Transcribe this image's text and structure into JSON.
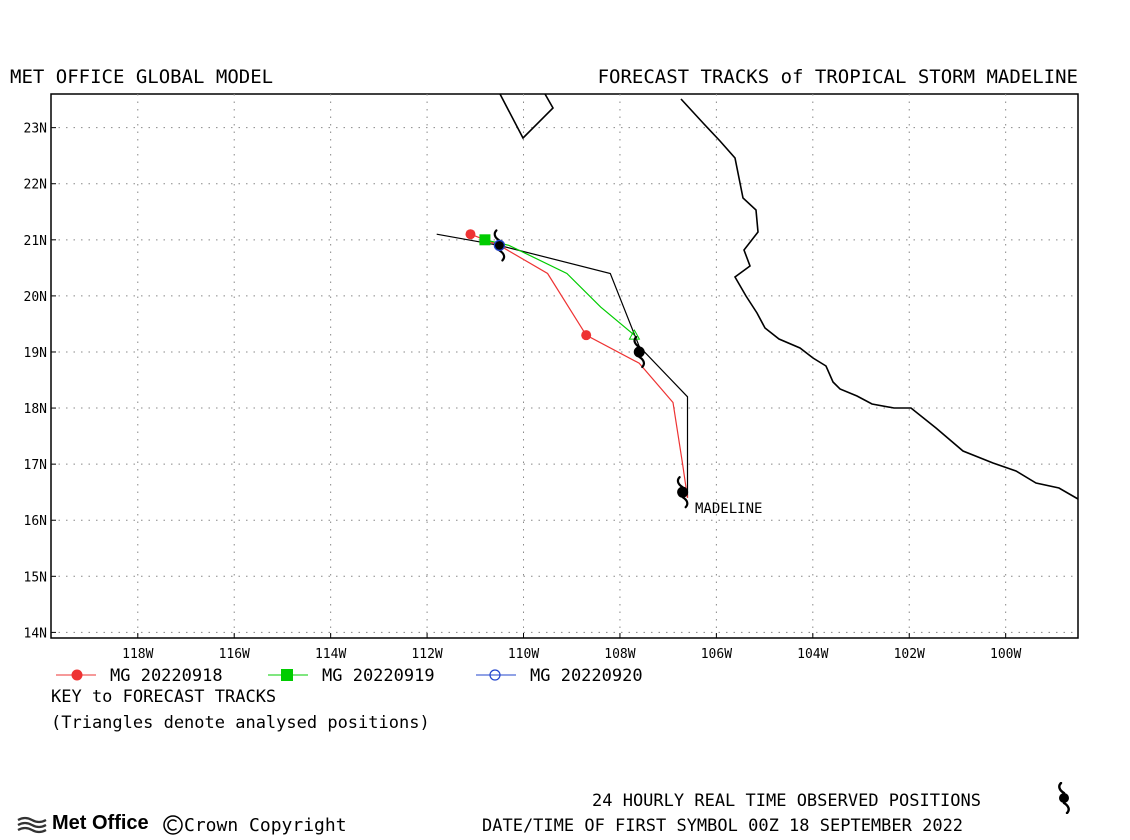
{
  "header": {
    "left_title": "MET OFFICE GLOBAL MODEL",
    "right_title": "FORECAST TRACKS of TROPICAL STORM MADELINE"
  },
  "map": {
    "lon_range": [
      -119.8,
      -98.5
    ],
    "lat_range": [
      13.9,
      23.6
    ],
    "lat_labels": [
      "14N",
      "15N",
      "16N",
      "17N",
      "18N",
      "19N",
      "20N",
      "21N",
      "22N",
      "23N"
    ],
    "lon_labels": [
      "118W",
      "116W",
      "114W",
      "112W",
      "110W",
      "108W",
      "106W",
      "104W",
      "102W",
      "100W"
    ],
    "grid": "dotted",
    "coast_color": "#000000",
    "storm_label": "MADELINE"
  },
  "chart_data": {
    "type": "map_tracks",
    "tracks": [
      {
        "name": "MG 20220918",
        "color": "#ee3333",
        "marker": "filled-circle",
        "points": [
          [
            -106.6,
            16.4
          ],
          [
            -106.7,
            17.0
          ],
          [
            -106.9,
            18.1
          ],
          [
            -107.6,
            18.8
          ],
          [
            -108.7,
            19.3
          ],
          [
            -109.5,
            20.4
          ],
          [
            -110.5,
            20.9
          ],
          [
            -111.1,
            21.1
          ]
        ],
        "marker_points": [
          [
            -108.7,
            19.3
          ],
          [
            -111.1,
            21.1
          ]
        ]
      },
      {
        "name": "MG 20220919",
        "color": "#00cc00",
        "marker": "filled-square",
        "points": [
          [
            -107.7,
            19.3
          ],
          [
            -108.4,
            19.8
          ],
          [
            -109.1,
            20.4
          ],
          [
            -110.3,
            20.9
          ],
          [
            -110.8,
            21.0
          ]
        ],
        "marker_points": [
          [
            -110.8,
            21.0
          ]
        ],
        "analysed_points": [
          [
            -107.7,
            19.3
          ]
        ]
      },
      {
        "name": "MG 20220920",
        "color": "#2244cc",
        "marker": "open-circle",
        "points": [
          [
            -110.5,
            20.9
          ]
        ],
        "marker_points": [
          [
            -110.5,
            20.9
          ]
        ]
      }
    ],
    "observed_track": {
      "points": [
        [
          -106.6,
          16.4
        ],
        [
          -106.6,
          18.2
        ],
        [
          -107.6,
          19.1
        ],
        [
          -108.2,
          20.4
        ],
        [
          -110.5,
          20.9
        ],
        [
          -111.8,
          21.1
        ]
      ],
      "storm_symbols": [
        [
          -106.7,
          16.5
        ],
        [
          -107.6,
          19.0
        ],
        [
          -110.5,
          20.9
        ]
      ]
    }
  },
  "legend": {
    "items": [
      {
        "label": "MG 20220918",
        "color": "#ee3333",
        "marker": "filled-circle"
      },
      {
        "label": "MG 20220919",
        "color": "#00cc00",
        "marker": "filled-square"
      },
      {
        "label": "MG 20220920",
        "color": "#2244cc",
        "marker": "open-circle"
      }
    ],
    "key_title": "KEY to FORECAST TRACKS",
    "key_note": "(Triangles denote analysed positions)"
  },
  "footer": {
    "brand": "Met Office",
    "copyright": "Crown Copyright",
    "observed_note": "24 HOURLY REAL TIME OBSERVED POSITIONS",
    "first_symbol": "DATE/TIME OF FIRST SYMBOL 00Z 18 SEPTEMBER 2022"
  }
}
